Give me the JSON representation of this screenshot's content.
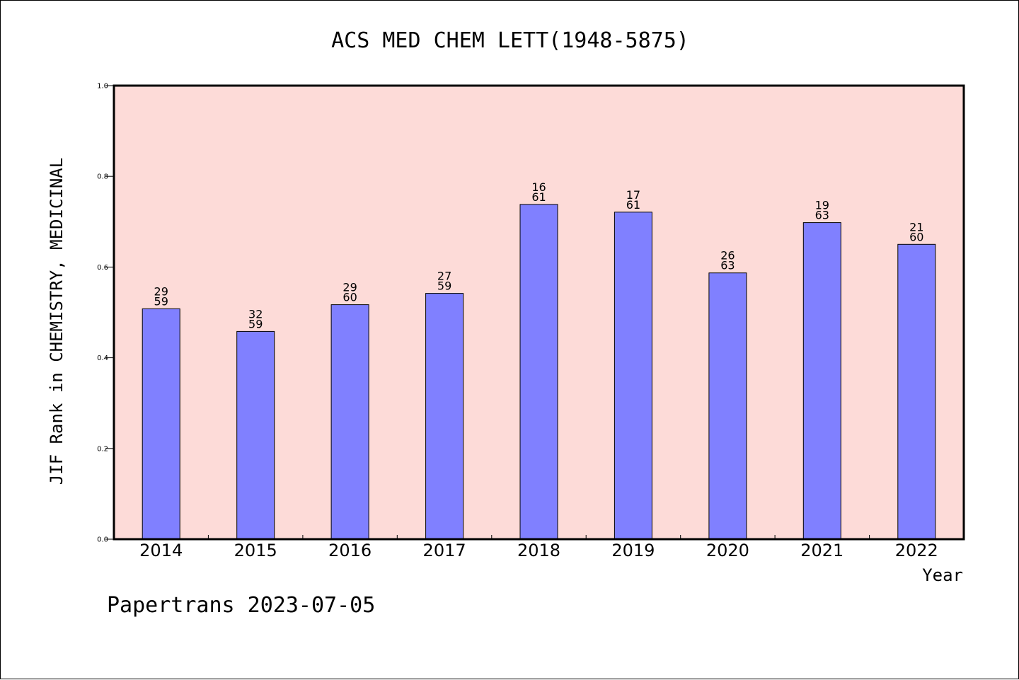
{
  "chart_data": {
    "type": "bar",
    "title": "ACS MED CHEM LETT(1948-5875)",
    "xlabel": "Year",
    "ylabel": "JIF Rank in CHEMISTRY, MEDICINAL",
    "ylim": [
      0,
      1.0
    ],
    "yticks": [
      "0.0",
      "0.2",
      "0.4",
      "0.6",
      "0.8",
      "1.0"
    ],
    "categories": [
      "2014",
      "2015",
      "2016",
      "2017",
      "2018",
      "2019",
      "2020",
      "2021",
      "2022"
    ],
    "values": [
      0.508,
      0.458,
      0.517,
      0.542,
      0.738,
      0.721,
      0.587,
      0.698,
      0.65
    ],
    "bar_labels": [
      [
        "29",
        "59"
      ],
      [
        "32",
        "59"
      ],
      [
        "29",
        "60"
      ],
      [
        "27",
        "59"
      ],
      [
        "16",
        "61"
      ],
      [
        "17",
        "61"
      ],
      [
        "26",
        "63"
      ],
      [
        "19",
        "63"
      ],
      [
        "21",
        "60"
      ]
    ],
    "grid": false,
    "colors": {
      "bar": "#8080ff",
      "plot_background": "#fddbd8",
      "axis": "#000000"
    }
  },
  "footer": "Papertrans 2023-07-05"
}
